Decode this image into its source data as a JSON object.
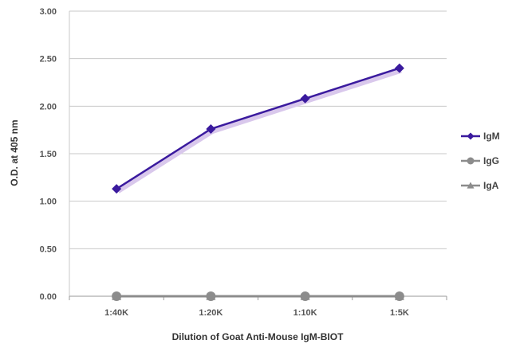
{
  "chart_data": {
    "type": "line",
    "title": "",
    "xlabel": "Dilution of Goat Anti-Mouse IgM-BIOT",
    "ylabel": "O.D. at 405 nm",
    "categories": [
      "1:40K",
      "1:20K",
      "1:10K",
      "1:5K"
    ],
    "ylim": [
      0,
      3
    ],
    "yticks": [
      "0.00",
      "0.50",
      "1.00",
      "1.50",
      "2.00",
      "2.50",
      "3.00"
    ],
    "grid": "horizontal",
    "legend_position": "right",
    "series": [
      {
        "name": "IgM",
        "values": [
          1.13,
          1.76,
          2.08,
          2.4
        ],
        "color": "#3a1a9e",
        "marker": "diamond"
      },
      {
        "name": "IgG",
        "values": [
          0.0,
          0.0,
          0.0,
          0.0
        ],
        "color": "#8c8c8c",
        "marker": "circle"
      },
      {
        "name": "IgA",
        "values": [
          0.0,
          0.0,
          0.0,
          0.0
        ],
        "color": "#8c8c8c",
        "marker": "triangle"
      }
    ]
  }
}
